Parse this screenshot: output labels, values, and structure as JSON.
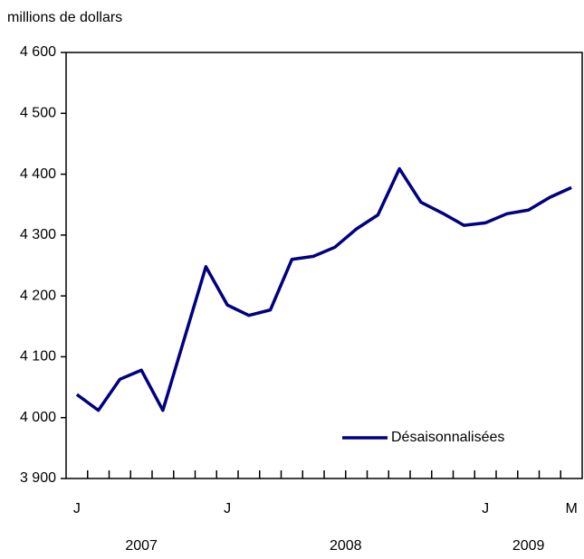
{
  "chart_data": {
    "type": "line",
    "y_axis_label": "millions de dollars",
    "categories": [
      "J",
      null,
      null,
      null,
      null,
      null,
      null,
      "J",
      null,
      null,
      null,
      null,
      null,
      null,
      null,
      null,
      null,
      null,
      null,
      "J",
      null,
      null,
      null,
      "M"
    ],
    "years": [
      "2007",
      "2008",
      "2009"
    ],
    "series": [
      {
        "name": "Désaisonnalisées",
        "color": "#000080",
        "values": [
          4038,
          4012,
          4063,
          4078,
          4012,
          4130,
          4248,
          4185,
          4168,
          4177,
          4260,
          4265,
          4280,
          4310,
          4333,
          4409,
          4354,
          4336,
          4316,
          4320,
          4335,
          4341,
          4362,
          4378
        ]
      }
    ],
    "ylim": [
      3900,
      4600
    ],
    "yticks": [
      {
        "value": 3900,
        "label": "3 900"
      },
      {
        "value": 4000,
        "label": "4 000"
      },
      {
        "value": 4100,
        "label": "4 100"
      },
      {
        "value": 4200,
        "label": "4 200"
      },
      {
        "value": 4300,
        "label": "4 300"
      },
      {
        "value": 4400,
        "label": "4 400"
      },
      {
        "value": 4500,
        "label": "4 500"
      },
      {
        "value": 4600,
        "label": "4 600"
      }
    ],
    "legend": "lower right",
    "grid": false
  }
}
